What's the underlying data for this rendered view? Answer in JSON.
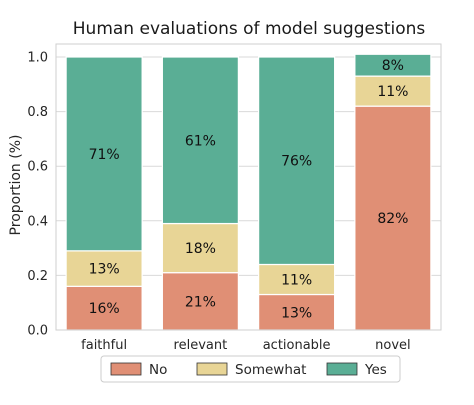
{
  "chart_data": {
    "type": "bar",
    "stacked": true,
    "title": "Human evaluations of model suggestions",
    "xlabel": "",
    "ylabel": "Proportion (%)",
    "ylim": [
      0,
      1.0
    ],
    "yticks": [
      "0.0",
      "0.2",
      "0.4",
      "0.6",
      "0.8",
      "1.0"
    ],
    "grid": true,
    "legend_position": "bottom",
    "categories": [
      "faithful",
      "relevant",
      "actionable",
      "novel"
    ],
    "series": [
      {
        "name": "No",
        "color": "#e08f75",
        "values": [
          0.16,
          0.21,
          0.13,
          0.82
        ],
        "labels": [
          "16%",
          "21%",
          "13%",
          "82%"
        ]
      },
      {
        "name": "Somewhat",
        "color": "#e8d596",
        "values": [
          0.13,
          0.18,
          0.11,
          0.11
        ],
        "labels": [
          "13%",
          "18%",
          "11%",
          "11%"
        ]
      },
      {
        "name": "Yes",
        "color": "#5aae95",
        "values": [
          0.71,
          0.61,
          0.76,
          0.08
        ],
        "labels": [
          "71%",
          "61%",
          "76%",
          "8%"
        ]
      }
    ]
  }
}
